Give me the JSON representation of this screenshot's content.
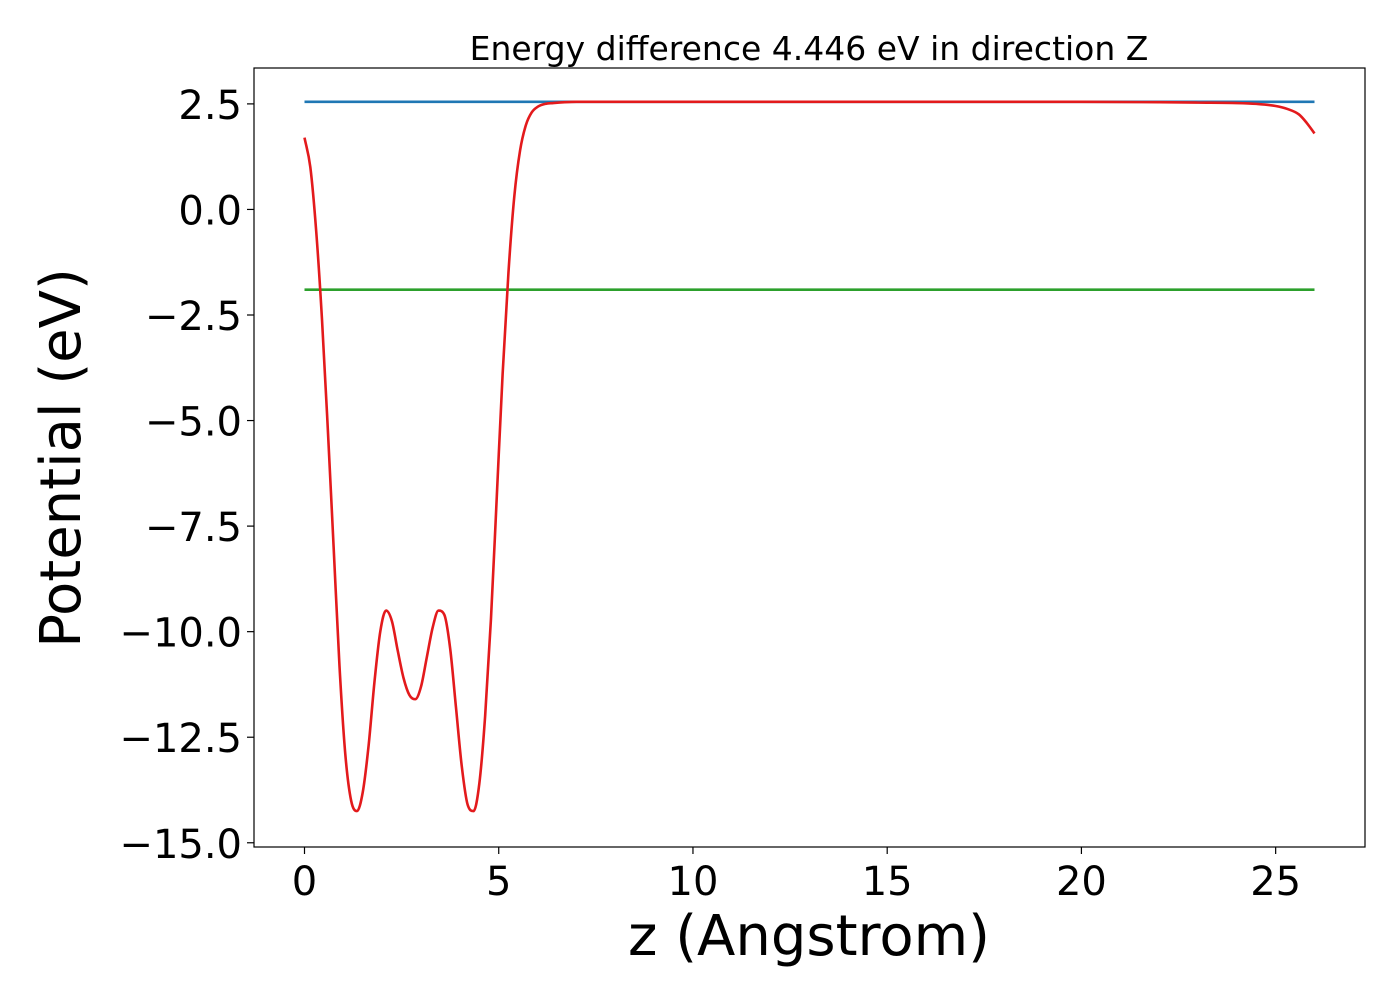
{
  "chart_data": {
    "type": "line",
    "title": "Energy difference 4.446 eV in direction Z",
    "xlabel": "z (Angstrom)",
    "ylabel": "Potential (eV)",
    "xlim": [
      -1.3,
      27.3
    ],
    "ylim": [
      -15.1,
      3.35
    ],
    "xticks": [
      0,
      5,
      10,
      15,
      20,
      25
    ],
    "xtick_labels": [
      "0",
      "5",
      "10",
      "15",
      "20",
      "25"
    ],
    "yticks": [
      2.5,
      0.0,
      -2.5,
      -5.0,
      -7.5,
      -10.0,
      -12.5,
      -15.0
    ],
    "ytick_labels": [
      "2.5",
      "0.0",
      "−2.5",
      "−5.0",
      "−7.5",
      "−10.0",
      "−12.5",
      "−15.0"
    ],
    "grid": false,
    "legend": "none",
    "series": [
      {
        "color": "#1f77b4",
        "x": [
          0,
          26
        ],
        "y": [
          2.55,
          2.55
        ]
      },
      {
        "color": "#2ca02c",
        "x": [
          0,
          26
        ],
        "y": [
          -1.9,
          -1.9
        ]
      },
      {
        "color": "#e31a1c",
        "x": [
          0,
          0.15,
          0.3,
          0.45,
          0.6,
          0.75,
          0.9,
          1.05,
          1.2,
          1.35,
          1.5,
          1.65,
          1.8,
          1.95,
          2.1,
          2.25,
          2.4,
          2.55,
          2.7,
          2.85,
          3.0,
          3.15,
          3.3,
          3.45,
          3.6,
          3.75,
          3.9,
          4.05,
          4.2,
          4.35,
          4.5,
          4.65,
          4.8,
          4.95,
          5.1,
          5.25,
          5.4,
          5.55,
          5.7,
          5.85,
          6.0,
          6.2,
          6.4,
          6.7,
          7.0,
          7.5,
          8.0,
          9.0,
          10.0,
          12.0,
          15.0,
          18.0,
          20.0,
          22.0,
          23.0,
          24.0,
          24.5,
          25.0,
          25.3,
          25.6,
          25.8,
          26.0
        ],
        "y": [
          1.7,
          1.0,
          -0.5,
          -2.6,
          -5.2,
          -8.0,
          -10.8,
          -12.9,
          -14.0,
          -14.25,
          -13.8,
          -12.7,
          -11.2,
          -10.0,
          -9.5,
          -9.75,
          -10.45,
          -11.1,
          -11.5,
          -11.6,
          -11.3,
          -10.6,
          -9.9,
          -9.5,
          -9.6,
          -10.4,
          -11.8,
          -13.2,
          -14.1,
          -14.25,
          -13.6,
          -12.0,
          -9.7,
          -6.8,
          -3.9,
          -1.5,
          0.3,
          1.4,
          2.0,
          2.3,
          2.43,
          2.5,
          2.52,
          2.54,
          2.55,
          2.55,
          2.55,
          2.55,
          2.55,
          2.55,
          2.55,
          2.55,
          2.55,
          2.54,
          2.53,
          2.52,
          2.5,
          2.45,
          2.38,
          2.25,
          2.05,
          1.8
        ]
      }
    ]
  }
}
